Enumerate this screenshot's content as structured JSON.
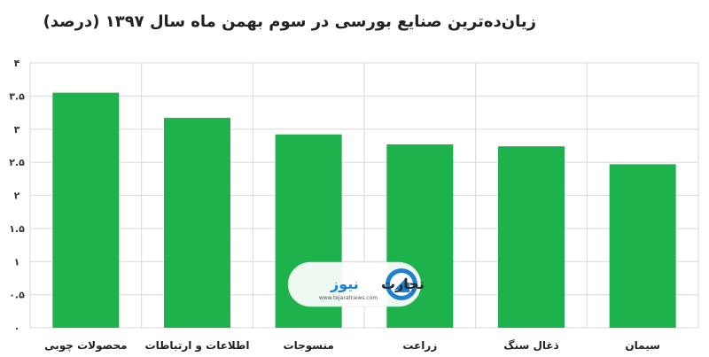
{
  "chart_data": {
    "type": "bar",
    "title": "زیان‌ده‌ترین صنایع بورسی در سوم بهمن ماه سال ۱۳۹۷ (درصد)",
    "categories": [
      "محصولات چوبی",
      "اطلاعات و ارتباطات",
      "منسوجات",
      "زراعت",
      "ذغال سنگ",
      "سیمان"
    ],
    "values": [
      3.55,
      3.17,
      2.92,
      2.77,
      2.74,
      2.47
    ],
    "ylim": [
      0,
      4
    ],
    "yticks": [
      0,
      0.5,
      1,
      1.5,
      2,
      2.5,
      3,
      3.5,
      4
    ],
    "ytick_labels": [
      "۰",
      "۰.۵",
      "۱",
      "۱.۵",
      "۲",
      "۲.۵",
      "۳",
      "۳.۵",
      "۴"
    ],
    "grid": true,
    "bar_color": "#1db24c"
  },
  "watermark": {
    "name_part1": "تجارت",
    "name_part2": "نیوز",
    "url": "www.tejaratnews.com"
  }
}
